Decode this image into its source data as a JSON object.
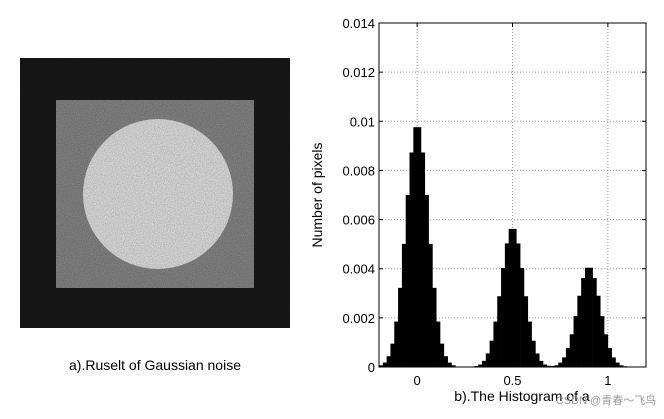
{
  "image": {
    "caption": "a).Ruselt of Gaussian noise"
  },
  "chart_data": {
    "type": "histogram",
    "xlabel": "b).The Histogram of a",
    "ylabel": "Number of pixels",
    "bins": [
      -0.2,
      -0.18,
      -0.16,
      -0.14,
      -0.12,
      -0.1,
      -0.08,
      -0.06,
      -0.04,
      -0.02,
      0,
      0.02,
      0.04,
      0.06,
      0.08,
      0.1,
      0.12,
      0.14,
      0.16,
      0.18,
      0.2,
      0.22,
      0.24,
      0.26,
      0.28,
      0.3,
      0.32,
      0.34,
      0.36,
      0.38,
      0.4,
      0.42,
      0.44,
      0.46,
      0.48,
      0.5,
      0.52,
      0.54,
      0.56,
      0.58,
      0.6,
      0.62,
      0.64,
      0.66,
      0.68,
      0.7,
      0.72,
      0.74,
      0.76,
      0.78,
      0.8,
      0.82,
      0.84,
      0.86,
      0.88,
      0.9,
      0.92,
      0.94,
      0.96,
      0.98,
      1,
      1.02,
      1.04,
      1.06,
      1.08,
      1.1,
      1.12,
      1.14,
      1.16,
      1.18,
      1.2
    ],
    "values": [
      7e-05,
      0.00018,
      0.00044,
      0.00095,
      0.00185,
      0.00322,
      0.00501,
      0.007,
      0.00873,
      0.00976,
      0.00976,
      0.00873,
      0.007,
      0.00501,
      0.00322,
      0.00185,
      0.00095,
      0.00044,
      0.00018,
      7e-05,
      2e-05,
      1e-05,
      1e-05,
      1e-05,
      1e-05,
      4e-05,
      0.0001,
      0.00025,
      0.00055,
      0.00107,
      0.00185,
      0.00288,
      0.00403,
      0.00503,
      0.00562,
      0.00562,
      0.00503,
      0.00403,
      0.00288,
      0.00185,
      0.00107,
      0.00055,
      0.00025,
      0.0001,
      5e-05,
      4e-05,
      7e-05,
      0.00018,
      0.00039,
      0.00077,
      0.00133,
      0.00207,
      0.0029,
      0.00362,
      0.00404,
      0.00404,
      0.00362,
      0.0029,
      0.00207,
      0.00133,
      0.00077,
      0.00039,
      0.00018,
      7e-05,
      3e-05,
      1e-05,
      0,
      0,
      0,
      0
    ],
    "color": "#000000",
    "xlim": [
      -0.2,
      1.2
    ],
    "xticks": [
      0,
      0.5,
      1
    ],
    "ylim": [
      0,
      0.014
    ],
    "yticks": [
      0,
      0.002,
      0.004,
      0.006,
      0.008,
      0.01,
      0.012,
      0.014
    ],
    "grid": true
  },
  "watermark": "CSDN @青春～飞鸟"
}
